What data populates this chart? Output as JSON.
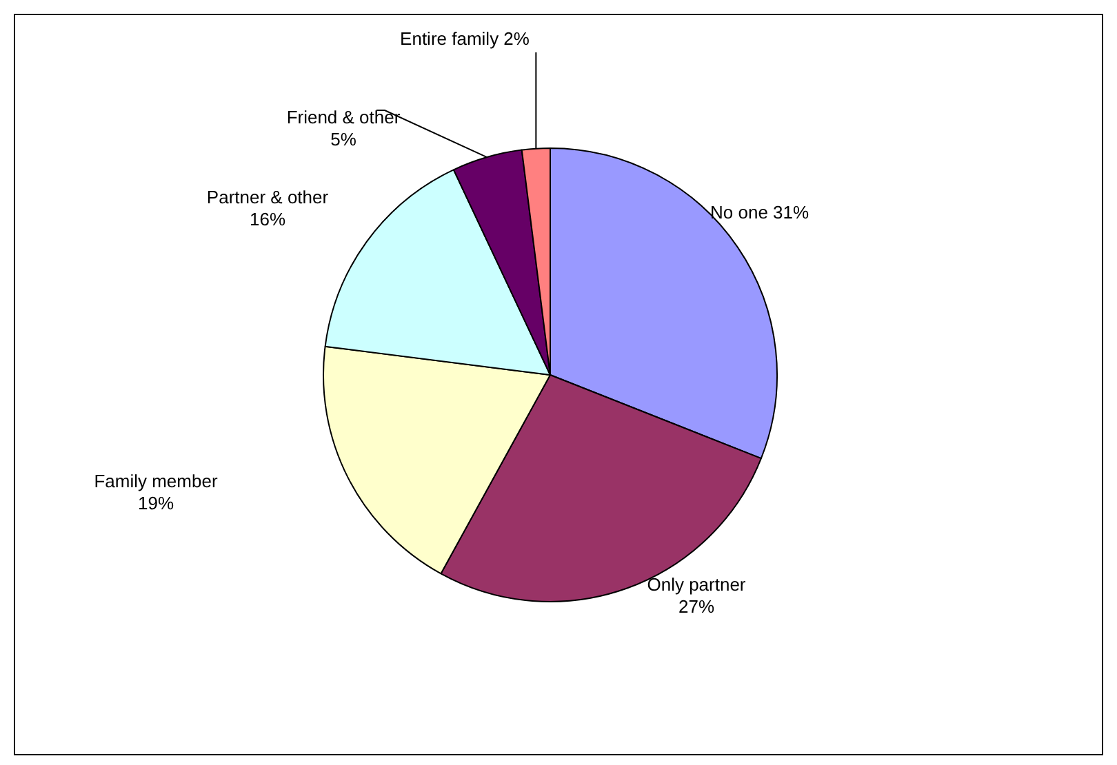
{
  "chart_data": {
    "type": "pie",
    "categories": [
      "No one",
      "Only partner",
      "Family member",
      "Partner & other",
      "Friend & other",
      "Entire family"
    ],
    "values": [
      31,
      27,
      19,
      16,
      5,
      2
    ],
    "value_labels": [
      "31%",
      "27%",
      "19%",
      "16%",
      "5%",
      "2%"
    ],
    "colors": [
      "#9999ff",
      "#993366",
      "#ffffcc",
      "#ccffff",
      "#660066",
      "#ff8080"
    ],
    "legend": false
  }
}
